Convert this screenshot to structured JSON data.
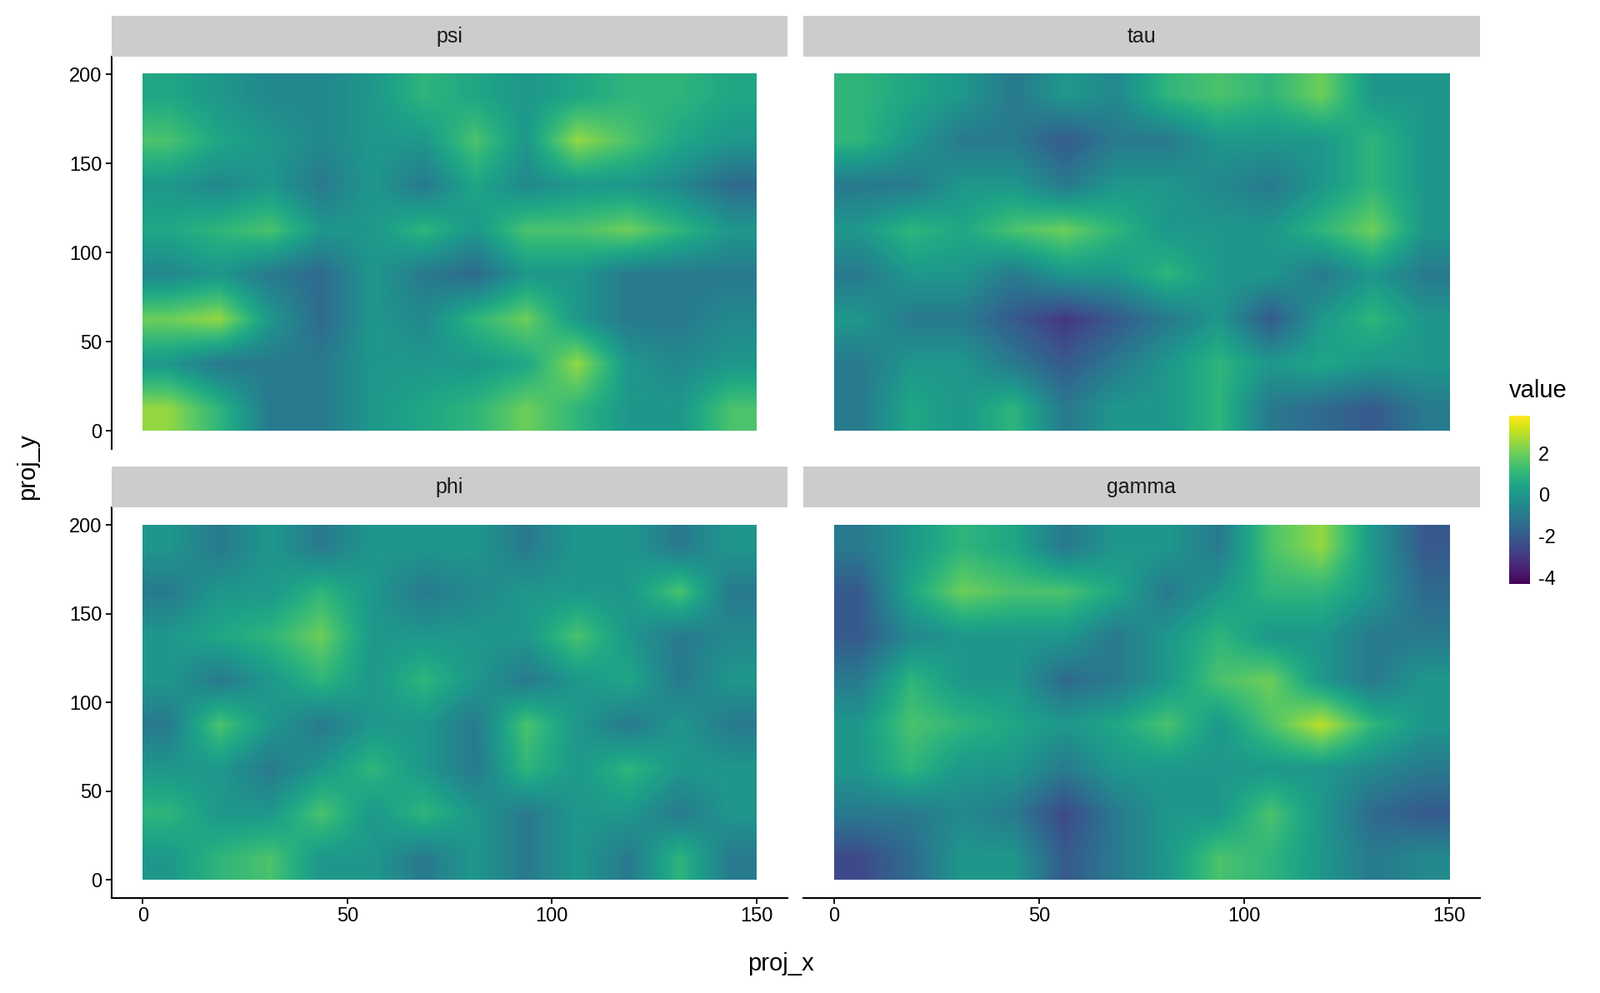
{
  "chart_data": {
    "type": "heatmap",
    "x_label": "proj_x",
    "y_label": "proj_y",
    "xlim": [
      -7.5,
      157.5
    ],
    "ylim": [
      -10,
      210
    ],
    "xticks": [
      0,
      50,
      100,
      150
    ],
    "yticks": [
      0,
      50,
      100,
      150,
      200
    ],
    "x_edges": [
      0,
      12.5,
      25,
      37.5,
      50,
      62.5,
      75,
      87.5,
      100,
      112.5,
      125,
      137.5,
      150
    ],
    "y_edges": [
      0,
      25,
      50,
      75,
      100,
      125,
      150,
      175,
      200
    ],
    "colorbar": {
      "title": "value",
      "range": [
        -4.3,
        3.8
      ],
      "ticks": [
        -4,
        -2,
        0,
        2
      ]
    },
    "panels": [
      {
        "title": "psi",
        "cells": [
          [
            2.5,
            1,
            -1,
            -1,
            0,
            0.5,
            1,
            2,
            1,
            0,
            0,
            1.5
          ],
          [
            0,
            -1,
            -1,
            -1,
            0,
            0,
            0,
            0.5,
            2.5,
            0,
            -0.5,
            0
          ],
          [
            2,
            2.5,
            0,
            -1.5,
            0,
            -0.5,
            1,
            2,
            0,
            -1,
            -1,
            -0.5
          ],
          [
            -0.5,
            0,
            -1,
            -1.5,
            0,
            -1,
            -1.5,
            0,
            0,
            -1,
            -1,
            -1
          ],
          [
            0.5,
            1,
            1.5,
            0,
            0,
            1,
            0,
            1.5,
            1.5,
            2,
            1,
            0
          ],
          [
            0,
            -0.5,
            0,
            -1,
            0,
            -1,
            0.5,
            -0.5,
            0,
            0,
            -0.5,
            -1.5
          ],
          [
            1.5,
            0.5,
            0,
            -0.5,
            0,
            0,
            1.5,
            0,
            2.5,
            1.5,
            0.5,
            0
          ],
          [
            0.5,
            0,
            -0.5,
            -0.5,
            0,
            1,
            0.5,
            0,
            0.5,
            1,
            1,
            0.5
          ]
        ]
      },
      {
        "title": "tau",
        "cells": [
          [
            -1,
            0.5,
            0,
            1,
            -1,
            0,
            0,
            1,
            -1,
            -1.5,
            -2,
            -1
          ],
          [
            -1,
            0,
            0,
            -1,
            -2,
            -1,
            0,
            1,
            0,
            0.5,
            0,
            0
          ],
          [
            0,
            -1,
            -1,
            -2,
            -3,
            -2,
            -1,
            0,
            -2,
            0,
            1,
            0
          ],
          [
            -1,
            0,
            0,
            -1,
            0,
            0,
            1,
            0,
            0,
            -1,
            0,
            -1
          ],
          [
            0,
            1,
            0.5,
            1.5,
            2,
            1,
            0,
            0,
            0,
            1,
            2,
            0
          ],
          [
            -1,
            -1,
            0,
            0,
            -1,
            0,
            0,
            -0.5,
            -1,
            0,
            1,
            0
          ],
          [
            1,
            0,
            -1,
            -1,
            -2,
            -1,
            -1,
            0,
            0,
            0,
            1,
            0
          ],
          [
            1,
            0.5,
            0,
            -1,
            0,
            -0.5,
            1,
            1.5,
            1,
            2,
            0,
            0
          ]
        ]
      },
      {
        "title": "phi",
        "cells": [
          [
            0,
            1,
            1.5,
            0,
            0,
            -1,
            0,
            -1,
            0,
            -1,
            1,
            -1
          ],
          [
            1,
            0,
            0,
            1.5,
            0,
            1,
            0,
            -1,
            0,
            0,
            -1,
            0
          ],
          [
            0,
            0,
            -1,
            0,
            1,
            0,
            -1,
            1,
            0,
            1,
            0,
            0
          ],
          [
            -1,
            1.5,
            0,
            -1,
            0,
            0,
            -1,
            1.5,
            0,
            -1,
            0,
            -1
          ],
          [
            0,
            -1,
            0,
            1,
            0,
            1,
            0,
            -1,
            0,
            0.5,
            -1,
            0
          ],
          [
            0,
            0.5,
            1,
            2,
            0,
            0,
            0,
            0,
            1.5,
            0,
            -1,
            -0.5
          ],
          [
            -1,
            0,
            0,
            1,
            0,
            -1,
            -0.5,
            0,
            0,
            0,
            1.5,
            -1
          ],
          [
            0,
            -1,
            0,
            -1,
            0,
            0,
            0,
            -1,
            0,
            0,
            -1,
            0
          ]
        ]
      },
      {
        "title": "gamma",
        "cells": [
          [
            -2.5,
            -1.5,
            0,
            0,
            -2,
            -1,
            0,
            1.5,
            1,
            0,
            -1,
            -0.5
          ],
          [
            -1,
            -1,
            -0.5,
            -1,
            -2.5,
            -1,
            0,
            0,
            1.5,
            0,
            -1.5,
            -2
          ],
          [
            0,
            1,
            0,
            0,
            -1,
            0,
            0,
            0,
            0,
            0,
            -0.5,
            -1
          ],
          [
            0,
            1.5,
            1,
            0.5,
            0,
            0.5,
            1.5,
            0,
            1.5,
            3,
            1,
            0
          ],
          [
            -1,
            1,
            0,
            0,
            -1.5,
            -1,
            0,
            1.5,
            2,
            0,
            -1,
            0
          ],
          [
            -2,
            -0.5,
            0,
            0,
            0,
            -1,
            0,
            1,
            0,
            0,
            -1,
            -1
          ],
          [
            -2,
            0.5,
            2,
            1.5,
            1.5,
            0.5,
            -1,
            0,
            1,
            1,
            0,
            -1.5
          ],
          [
            -1,
            0,
            1,
            0.5,
            -1,
            0,
            0,
            -1,
            1.5,
            2.5,
            0,
            -2
          ]
        ]
      }
    ]
  }
}
